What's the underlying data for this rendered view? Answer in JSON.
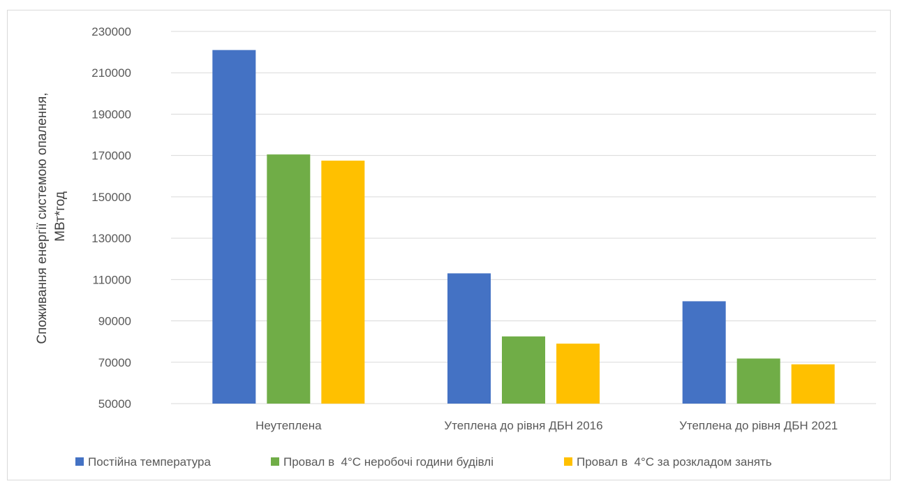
{
  "chart_data": {
    "type": "bar",
    "title": "",
    "xlabel": "",
    "ylabel": [
      "Споживання енергії системою опалення,",
      "МВт*год"
    ],
    "ylim": [
      50000,
      230000
    ],
    "yticks": [
      50000,
      70000,
      90000,
      110000,
      130000,
      150000,
      170000,
      190000,
      210000,
      230000
    ],
    "grid": true,
    "legend_position": "bottom",
    "categories": [
      "Неутеплена",
      "Утеплена до рівня ДБН 2016",
      "Утеплена до рівня ДБН 2021"
    ],
    "series": [
      {
        "name": "Постійна температура",
        "color": "#4472C4",
        "values": [
          221000,
          113000,
          99500
        ]
      },
      {
        "name": "Провал в  4°С неробочі години будівлі",
        "color": "#70AD47",
        "values": [
          170500,
          82500,
          71800
        ]
      },
      {
        "name": "Провал в  4°С за розкладом занять",
        "color": "#FFC000",
        "values": [
          167500,
          79000,
          69000
        ]
      }
    ]
  }
}
